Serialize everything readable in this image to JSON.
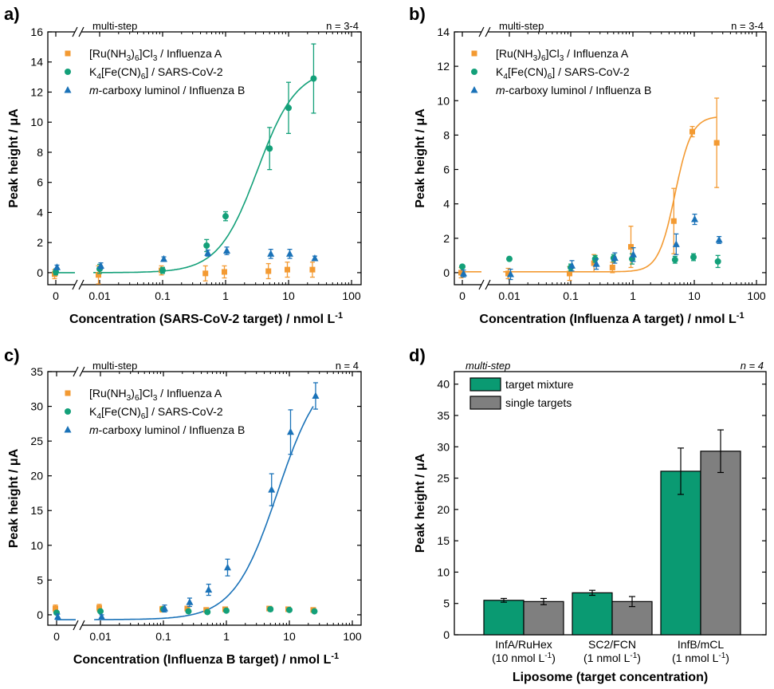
{
  "colors": {
    "orange": "#f39a32",
    "green": "#13a079",
    "blue": "#1a72b8",
    "grey": "#7f7f7f",
    "teal": "#0a9a72"
  },
  "chart_data": [
    {
      "type": "scatter",
      "panel": "a)",
      "note_left": "multi-step",
      "note_right": "n = 3-4",
      "xlabel": "Concentration (SARS-CoV-2 target) / nmol L",
      "xlabel_sup": "-1",
      "ylabel": "Peak height / μA",
      "xscale": "log",
      "x_ticks": [
        "0",
        "0.01",
        "0.1",
        "1",
        "10",
        "100"
      ],
      "y_ticks": [
        0,
        2,
        4,
        6,
        8,
        10,
        12,
        14,
        16
      ],
      "ylim": [
        -0.8,
        16
      ],
      "fit_series": 1,
      "fit": {
        "bottom": 0.0,
        "top": 13.6,
        "ec50": 3.2,
        "hill": 1.4
      },
      "series": [
        {
          "name": "[Ru(NH3)6]Cl3 / Influenza A",
          "marker": "square",
          "color": "orange",
          "x": [
            0,
            0.01,
            0.1,
            0.5,
            1,
            5,
            10,
            25
          ],
          "y": [
            -0.1,
            -0.15,
            0.15,
            -0.05,
            0.05,
            0.1,
            0.2,
            0.2
          ],
          "err": [
            0.3,
            0.6,
            0.3,
            0.5,
            0.4,
            0.5,
            0.5,
            0.5
          ]
        },
        {
          "name": "K4[Fe(CN)6] / SARS-CoV-2",
          "marker": "circle",
          "color": "green",
          "x": [
            0,
            0.01,
            0.1,
            0.5,
            1,
            5,
            10,
            25
          ],
          "y": [
            0.05,
            0.25,
            0.15,
            1.8,
            3.75,
            8.25,
            10.95,
            12.9
          ],
          "err": [
            0.2,
            0.3,
            0.2,
            0.4,
            0.3,
            1.4,
            1.7,
            2.3
          ]
        },
        {
          "name": "m-carboxy luminol / Influenza B",
          "marker": "triangle",
          "color": "blue",
          "x": [
            0,
            0.01,
            0.1,
            0.5,
            1,
            5,
            10,
            25
          ],
          "y": [
            0.35,
            0.45,
            0.9,
            1.3,
            1.45,
            1.25,
            1.25,
            0.95
          ],
          "err": [
            0.15,
            0.2,
            0.15,
            0.2,
            0.25,
            0.3,
            0.3,
            0.15
          ]
        }
      ]
    },
    {
      "type": "scatter",
      "panel": "b)",
      "note_left": "multi-step",
      "note_right": "n = 3-4",
      "xlabel": "Concentration (Influenza A target) / nmol L",
      "xlabel_sup": "-1",
      "ylabel": "Peak height / μA",
      "xscale": "log",
      "x_ticks": [
        "0",
        "0.01",
        "0.1",
        "1",
        "10",
        "100"
      ],
      "y_ticks": [
        0,
        2,
        4,
        6,
        8,
        10,
        12,
        14
      ],
      "ylim": [
        -0.7,
        14
      ],
      "fit_series": 0,
      "fit": {
        "bottom": 0.05,
        "top": 9.1,
        "ec50": 5.0,
        "hill": 3.2
      },
      "series": [
        {
          "name": "[Ru(NH3)6]Cl3 / Influenza A",
          "marker": "square",
          "color": "orange",
          "x": [
            0,
            0.01,
            0.1,
            0.25,
            0.5,
            1,
            5,
            10,
            25
          ],
          "y": [
            0.0,
            -0.05,
            -0.05,
            0.55,
            0.3,
            1.5,
            3.0,
            8.2,
            7.55
          ],
          "err": [
            0.3,
            0.3,
            0.4,
            0.5,
            0.3,
            1.2,
            1.9,
            0.3,
            2.6
          ]
        },
        {
          "name": "K4[Fe(CN)6] / SARS-CoV-2",
          "marker": "circle",
          "color": "green",
          "x": [
            0,
            0.01,
            0.1,
            0.25,
            0.5,
            1,
            5,
            10,
            25
          ],
          "y": [
            0.35,
            0.8,
            0.3,
            0.8,
            0.85,
            0.8,
            0.75,
            0.9,
            0.65
          ],
          "err": [
            0.1,
            0.1,
            0.2,
            0.2,
            0.2,
            0.3,
            0.2,
            0.2,
            0.35
          ]
        },
        {
          "name": "m-carboxy luminol / Influenza B",
          "marker": "triangle",
          "color": "blue",
          "x": [
            0,
            0.01,
            0.1,
            0.25,
            0.5,
            1,
            5,
            10,
            25
          ],
          "y": [
            -0.05,
            -0.1,
            0.4,
            0.5,
            0.85,
            1.05,
            1.65,
            3.1,
            1.9
          ],
          "err": [
            0.2,
            0.3,
            0.3,
            0.3,
            0.3,
            0.4,
            0.6,
            0.3,
            0.2
          ]
        }
      ]
    },
    {
      "type": "scatter",
      "panel": "c)",
      "note_left": "multi-step",
      "note_right": "n = 4",
      "xlabel": "Concentration (Influenza B target) / nmol L",
      "xlabel_sup": "-1",
      "ylabel": "Peak height / μA",
      "xscale": "log",
      "x_ticks": [
        "0",
        "0.01",
        "0.1",
        "1",
        "10",
        "100"
      ],
      "y_ticks": [
        0,
        5,
        10,
        15,
        20,
        25,
        30,
        35
      ],
      "ylim": [
        -1.5,
        35
      ],
      "fit_series": 2,
      "fit": {
        "bottom": -0.7,
        "top": 36.0,
        "ec50": 6.5,
        "hill": 1.25
      },
      "series": [
        {
          "name": "[Ru(NH3)6]Cl3 / Influenza A",
          "marker": "square",
          "color": "orange",
          "x": [
            0,
            0.01,
            0.1,
            0.25,
            0.5,
            1,
            5,
            10,
            25
          ],
          "y": [
            0.9,
            1.0,
            0.8,
            0.9,
            0.7,
            0.8,
            0.9,
            0.8,
            0.7
          ],
          "err": [
            0.5,
            0.5,
            0.4,
            0.3,
            0.3,
            0.3,
            0.3,
            0.3,
            0.3
          ]
        },
        {
          "name": "K4[Fe(CN)6] / SARS-CoV-2",
          "marker": "circle",
          "color": "green",
          "x": [
            0,
            0.01,
            0.1,
            0.25,
            0.5,
            1,
            5,
            10,
            25
          ],
          "y": [
            0.3,
            0.5,
            0.8,
            0.5,
            0.4,
            0.6,
            0.8,
            0.7,
            0.5
          ],
          "err": [
            0.2,
            0.2,
            0.2,
            0.2,
            0.2,
            0.2,
            0.3,
            0.2,
            0.2
          ]
        },
        {
          "name": "m-carboxy luminol / Influenza B",
          "marker": "triangle",
          "color": "blue",
          "x": [
            0,
            0.01,
            0.1,
            0.25,
            0.5,
            1,
            5,
            10,
            25
          ],
          "y": [
            -0.3,
            -0.3,
            0.9,
            1.8,
            3.6,
            6.8,
            18.0,
            26.3,
            31.5
          ],
          "err": [
            0.4,
            0.3,
            0.5,
            0.6,
            0.8,
            1.2,
            2.3,
            3.2,
            1.9
          ]
        }
      ]
    },
    {
      "type": "bar",
      "panel": "d)",
      "note_left": "multi-step",
      "note_right": "n = 4",
      "xlabel": "Liposome (target concentration)",
      "ylabel": "Peak height / μA",
      "y_ticks": [
        0,
        5,
        10,
        15,
        20,
        25,
        30,
        35,
        40
      ],
      "ylim": [
        0,
        42
      ],
      "categories": [
        {
          "line1": "InfA/RuHex",
          "line2": "(10 nmol L",
          "sup": "-1",
          "close": ")"
        },
        {
          "line1": "SC2/FCN",
          "line2": "(1 nmol L",
          "sup": "-1",
          "close": ")"
        },
        {
          "line1": "InfB/mCL",
          "line2": "(1 nmol L",
          "sup": "-1",
          "close": ")"
        }
      ],
      "series": [
        {
          "name": "target mixture",
          "color": "teal",
          "values": [
            5.5,
            6.7,
            26.1
          ],
          "err": [
            0.3,
            0.4,
            3.7
          ]
        },
        {
          "name": "single targets",
          "color": "grey",
          "values": [
            5.3,
            5.3,
            29.3
          ],
          "err": [
            0.5,
            0.8,
            3.4
          ]
        }
      ]
    }
  ]
}
